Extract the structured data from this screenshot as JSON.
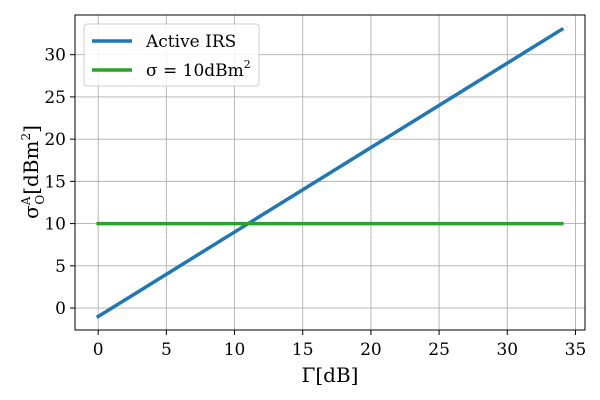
{
  "chart_data": {
    "type": "line",
    "x_range": [
      -1.7,
      35.7
    ],
    "y_range": [
      -2.6,
      34.7
    ],
    "x_ticks": [
      0,
      5,
      10,
      15,
      20,
      25,
      30,
      35
    ],
    "y_ticks": [
      0,
      5,
      10,
      15,
      20,
      25,
      30
    ],
    "xlabel": "Γ[dB]",
    "ylabel": {
      "base": "σ",
      "sup": "A",
      "sub": "O",
      "rest": "[dBm",
      "unit_sup": "2",
      "close": "]"
    },
    "grid": true,
    "legend_position": "upper-left",
    "series": [
      {
        "name": "Active IRS",
        "color": "#1f77b4",
        "x": [
          0,
          34
        ],
        "y": [
          -1,
          33
        ]
      },
      {
        "name": "σ = 10dBm",
        "name_sup": "2",
        "color": "#2ca02c",
        "x": [
          0,
          34
        ],
        "y": [
          10,
          10
        ]
      }
    ]
  }
}
